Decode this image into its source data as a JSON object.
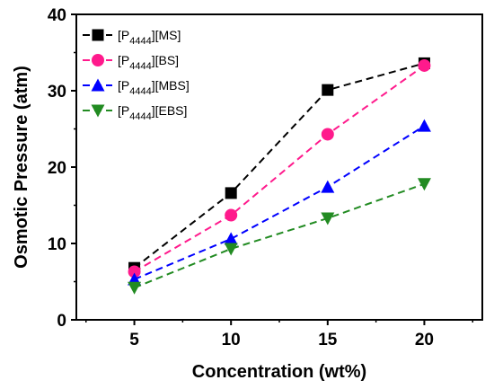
{
  "chart_data": {
    "type": "line",
    "xlabel": "Concentration (wt%)",
    "ylabel": "Osmotic Pressure (atm)",
    "xlim": [
      2,
      23
    ],
    "ylim": [
      0,
      40
    ],
    "xticks": [
      5,
      10,
      15,
      20
    ],
    "yticks": [
      0,
      10,
      20,
      30,
      40
    ],
    "legend_position": "top-left",
    "x": [
      5,
      10,
      15,
      20
    ],
    "series": [
      {
        "name": "[P4444][MS]",
        "cation": "[P",
        "subscript": "4444",
        "anion": "][MS]",
        "color": "#000000",
        "marker": "square",
        "values": [
          6.8,
          16.6,
          30.1,
          33.6
        ]
      },
      {
        "name": "[P4444][BS]",
        "cation": "[P",
        "subscript": "4444",
        "anion": "][BS]",
        "color": "#ff1a8c",
        "marker": "circle",
        "values": [
          6.3,
          13.7,
          24.3,
          33.3
        ]
      },
      {
        "name": "[P4444][MBS]",
        "cation": "[P",
        "subscript": "4444",
        "anion": "][MBS]",
        "color": "#0000ff",
        "marker": "triangle-up",
        "values": [
          5.3,
          10.6,
          17.4,
          25.4
        ]
      },
      {
        "name": "[P4444][EBS]",
        "cation": "[P",
        "subscript": "4444",
        "anion": "][EBS]",
        "color": "#228b22",
        "marker": "triangle-down",
        "values": [
          4.2,
          9.3,
          13.3,
          17.8
        ]
      }
    ]
  }
}
